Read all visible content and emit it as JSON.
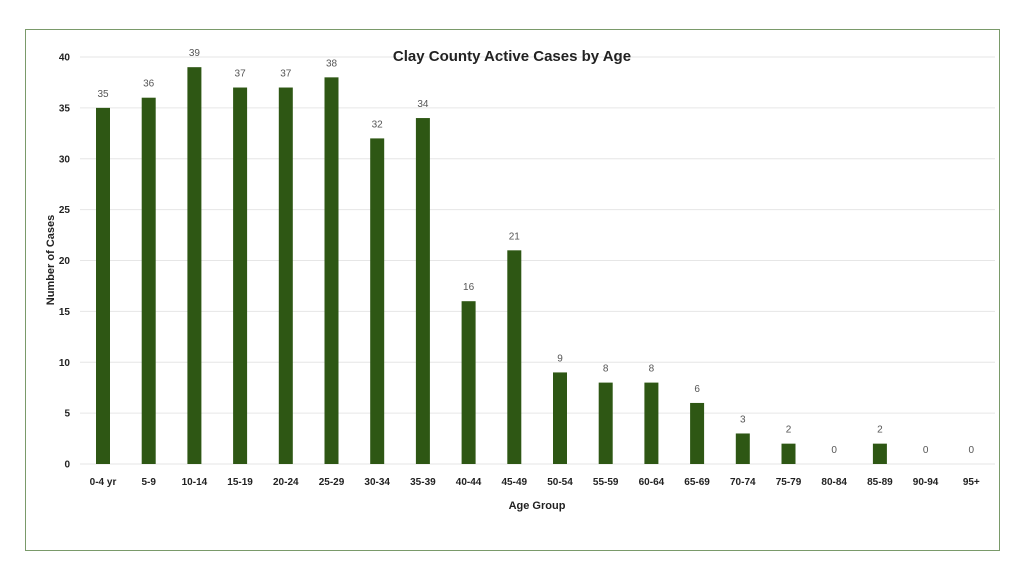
{
  "chart_data": {
    "type": "bar",
    "title": "Clay County Active Cases by Age",
    "xlabel": "Age Group",
    "ylabel": "Number of Cases",
    "categories": [
      "0-4 yr",
      "5-9",
      "10-14",
      "15-19",
      "20-24",
      "25-29",
      "30-34",
      "35-39",
      "40-44",
      "45-49",
      "50-54",
      "55-59",
      "60-64",
      "65-69",
      "70-74",
      "75-79",
      "80-84",
      "85-89",
      "90-94",
      "95+"
    ],
    "values": [
      35,
      36,
      39,
      37,
      37,
      38,
      32,
      34,
      16,
      21,
      9,
      8,
      8,
      6,
      3,
      2,
      0,
      2,
      0,
      0
    ],
    "ylim": [
      0,
      40
    ],
    "yticks": [
      0,
      5,
      10,
      15,
      20,
      25,
      30,
      35,
      40
    ],
    "grid": true,
    "data_labels": true,
    "bar_color": "#2e5714",
    "grid_color": "#e6e6e6"
  }
}
